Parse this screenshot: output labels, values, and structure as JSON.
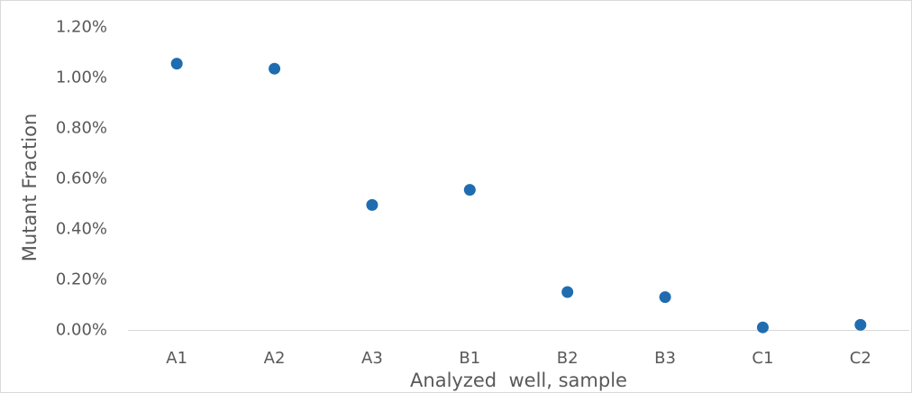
{
  "chart_data": {
    "type": "scatter",
    "title": "",
    "xlabel": "Analyzed  well, sample",
    "ylabel": "Mutant Fraction",
    "categories": [
      "A1",
      "A2",
      "A3",
      "B1",
      "B2",
      "B3",
      "C1",
      "C2"
    ],
    "series": [
      {
        "values": [
          0.01055,
          0.01035,
          0.00495,
          0.00555,
          0.0015,
          0.0013,
          0.0001,
          0.0002
        ]
      }
    ],
    "yticks": [
      "0.00%",
      "0.20%",
      "0.40%",
      "0.60%",
      "0.80%",
      "1.00%",
      "1.20%"
    ],
    "ylim": [
      0,
      0.012
    ],
    "grid": false,
    "legend": "none",
    "marker_color": "#1f6db0"
  }
}
